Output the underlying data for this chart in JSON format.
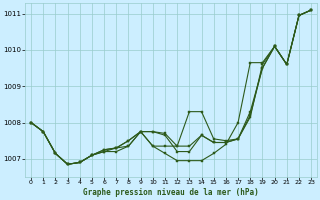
{
  "title": "Graphe pression niveau de la mer (hPa)",
  "bg_color": "#cceeff",
  "grid_color": "#99cccc",
  "line_color": "#2d5a1b",
  "xlim": [
    -0.5,
    23.5
  ],
  "ylim": [
    1006.5,
    1011.3
  ],
  "yticks": [
    1007,
    1008,
    1009,
    1010,
    1011
  ],
  "xticks": [
    0,
    1,
    2,
    3,
    4,
    5,
    6,
    7,
    8,
    9,
    10,
    11,
    12,
    13,
    14,
    15,
    16,
    17,
    18,
    19,
    20,
    21,
    22,
    23
  ],
  "series1": [
    1008.0,
    1007.75,
    1007.15,
    1006.85,
    1006.9,
    1007.1,
    1007.2,
    1007.2,
    1007.35,
    1007.75,
    1007.75,
    1007.7,
    1007.35,
    1008.3,
    1008.3,
    1007.55,
    1007.5,
    1007.55,
    1008.15,
    1009.6,
    1010.1,
    1009.6,
    1010.95,
    1011.1
  ],
  "series2": [
    1008.0,
    1007.75,
    1007.15,
    1006.85,
    1006.9,
    1007.1,
    1007.2,
    1007.3,
    1007.5,
    1007.75,
    1007.75,
    1007.65,
    1007.2,
    1007.2,
    1007.65,
    1007.45,
    1007.45,
    1007.55,
    1008.2,
    1009.5,
    1010.1,
    1009.6,
    1010.95,
    1011.1
  ],
  "series3": [
    1008.0,
    1007.75,
    1007.15,
    1006.85,
    1006.9,
    1007.1,
    1007.25,
    1007.3,
    1007.5,
    1007.75,
    1007.35,
    1007.35,
    1007.35,
    1007.35,
    1007.65,
    1007.45,
    1007.45,
    1007.55,
    1008.3,
    1009.5,
    1010.1,
    1009.6,
    1010.95,
    1011.1
  ],
  "series4": [
    1008.0,
    1007.75,
    1007.15,
    1006.85,
    1006.9,
    1007.1,
    1007.25,
    1007.3,
    1007.35,
    1007.75,
    1007.35,
    1007.15,
    1006.95,
    1006.95,
    1006.95,
    1007.15,
    1007.4,
    1008.0,
    1009.65,
    1009.65,
    1010.1,
    1009.6,
    1010.95,
    1011.1
  ]
}
